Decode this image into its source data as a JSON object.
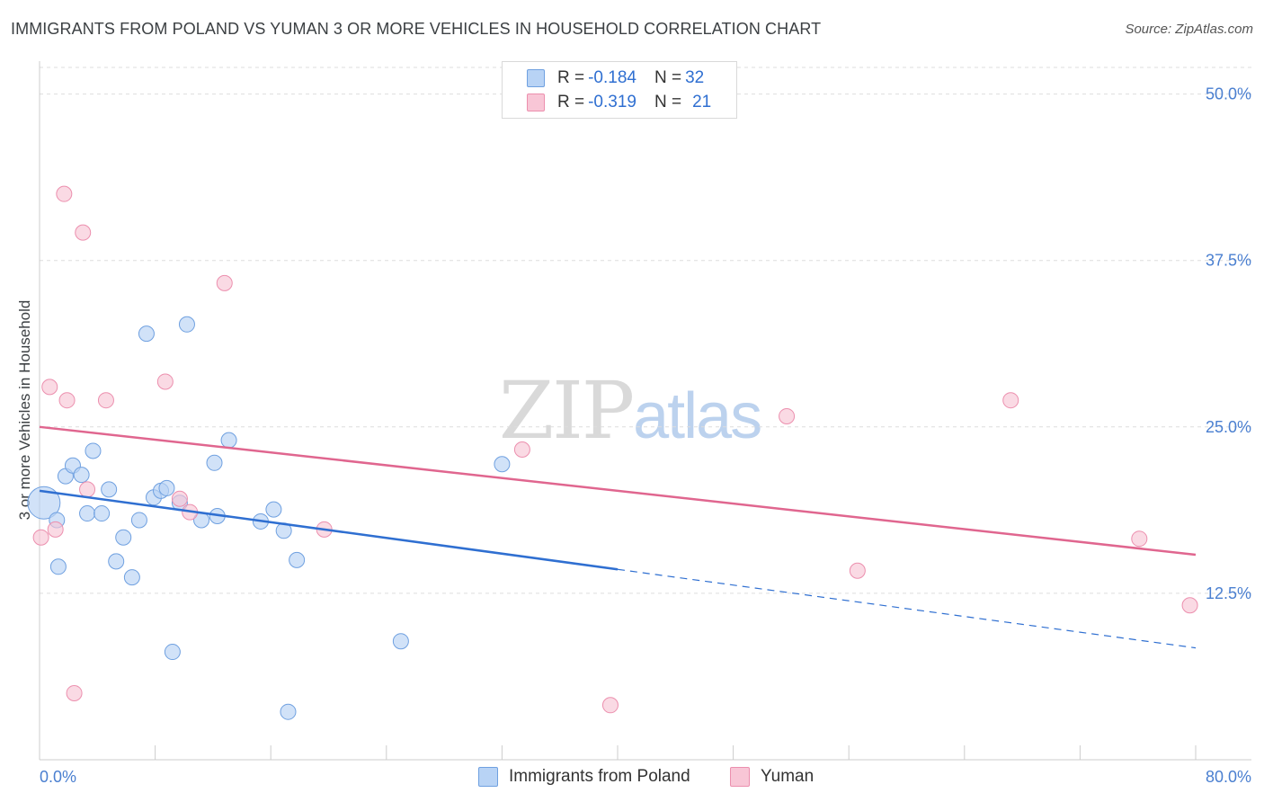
{
  "title": "IMMIGRANTS FROM POLAND VS YUMAN 3 OR MORE VEHICLES IN HOUSEHOLD CORRELATION CHART",
  "source": "Source: ZipAtlas.com",
  "watermark": {
    "zip": "ZIP",
    "atlas": "atlas"
  },
  "legend_top": [
    {
      "label_r": "R = ",
      "r": "-0.184",
      "label_n": "N = ",
      "n": "32"
    },
    {
      "label_r": "R = ",
      "r": "-0.319",
      "label_n": "N = ",
      "n": "21"
    }
  ],
  "legend_bottom": [
    "Immigrants from Poland",
    "Yuman"
  ],
  "colors": {
    "blue_fill": "#b8d3f5",
    "blue_stroke": "#6fa0e0",
    "blue_line": "#2f6fd1",
    "pink_fill": "#f8c6d6",
    "pink_stroke": "#ec8fae",
    "pink_line": "#e0668f",
    "axis_text": "#4a7fd0",
    "grid": "#dddddd"
  },
  "chart_data": {
    "type": "scatter",
    "title": "IMMIGRANTS FROM POLAND VS YUMAN 3 OR MORE VEHICLES IN HOUSEHOLD CORRELATION CHART",
    "xlabel": "",
    "ylabel": "3 or more Vehicles in Household",
    "xlim": [
      0,
      80
    ],
    "ylim": [
      0,
      52
    ],
    "x_tick_labels": [
      "0.0%",
      "80.0%"
    ],
    "y_ticks": [
      12.5,
      25.0,
      37.5,
      50.0
    ],
    "y_tick_labels": [
      "12.5%",
      "25.0%",
      "37.5%",
      "50.0%"
    ],
    "series": [
      {
        "name": "Immigrants from Poland",
        "R": -0.184,
        "N": 32,
        "points": [
          [
            0.3,
            19.3
          ],
          [
            1.2,
            18.0
          ],
          [
            1.3,
            14.5
          ],
          [
            1.8,
            21.3
          ],
          [
            2.3,
            22.1
          ],
          [
            2.9,
            21.4
          ],
          [
            3.3,
            18.5
          ],
          [
            3.7,
            23.2
          ],
          [
            4.3,
            18.5
          ],
          [
            4.8,
            20.3
          ],
          [
            5.3,
            14.9
          ],
          [
            5.8,
            16.7
          ],
          [
            6.4,
            13.7
          ],
          [
            6.9,
            18.0
          ],
          [
            7.4,
            32.0
          ],
          [
            7.9,
            19.7
          ],
          [
            8.4,
            20.2
          ],
          [
            8.8,
            20.4
          ],
          [
            9.2,
            8.1
          ],
          [
            9.7,
            19.3
          ],
          [
            10.2,
            32.7
          ],
          [
            11.2,
            18.0
          ],
          [
            12.1,
            22.3
          ],
          [
            12.3,
            18.3
          ],
          [
            13.1,
            24.0
          ],
          [
            15.3,
            17.9
          ],
          [
            16.2,
            18.8
          ],
          [
            16.9,
            17.2
          ],
          [
            17.2,
            3.6
          ],
          [
            17.8,
            15.0
          ],
          [
            25.0,
            8.9
          ],
          [
            32.0,
            22.2
          ]
        ],
        "trend": {
          "x0": 0.0,
          "y0": 20.2,
          "x1": 40.0,
          "y1": 14.3,
          "dashed_to_x": 80.0,
          "dashed_to_y": 8.4
        }
      },
      {
        "name": "Yuman",
        "R": -0.319,
        "N": 21,
        "points": [
          [
            0.1,
            16.7
          ],
          [
            0.7,
            28.0
          ],
          [
            1.1,
            17.3
          ],
          [
            1.9,
            27.0
          ],
          [
            1.7,
            42.5
          ],
          [
            2.4,
            5.0
          ],
          [
            3.0,
            39.6
          ],
          [
            3.3,
            20.3
          ],
          [
            4.6,
            27.0
          ],
          [
            8.7,
            28.4
          ],
          [
            9.7,
            19.6
          ],
          [
            10.4,
            18.6
          ],
          [
            12.8,
            35.8
          ],
          [
            19.7,
            17.3
          ],
          [
            33.4,
            23.3
          ],
          [
            39.5,
            4.1
          ],
          [
            51.7,
            25.8
          ],
          [
            56.6,
            14.2
          ],
          [
            67.2,
            27.0
          ],
          [
            76.1,
            16.6
          ],
          [
            79.6,
            11.6
          ]
        ],
        "trend": {
          "x0": 0.0,
          "y0": 25.0,
          "x1": 80.0,
          "y1": 15.4
        }
      }
    ]
  }
}
